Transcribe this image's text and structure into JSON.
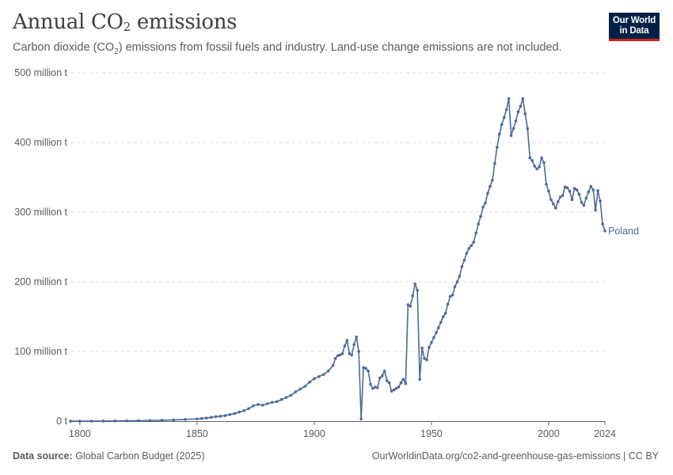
{
  "header": {
    "title_main": "Annual CO",
    "title_sub": "2",
    "title_rest": " emissions",
    "subtitle_a": "Carbon dioxide (CO",
    "subtitle_sub": "2",
    "subtitle_b": ") emissions from fossil fuels and industry. Land-use change emissions are not included.",
    "logo_line1": "Our World",
    "logo_line2": "in Data"
  },
  "footer": {
    "source_label": "Data source:",
    "source_value": " Global Carbon Budget (2025)",
    "link": "OurWorldinData.org/co2-and-greenhouse-gas-emissions | CC BY"
  },
  "colors": {
    "series": "#4c6a9c",
    "grid": "#dddddd",
    "axis": "#666666",
    "text": "#5b5b5b"
  },
  "chart_data": {
    "type": "line",
    "title": "Annual CO₂ emissions",
    "ylim": [
      0,
      500
    ],
    "xlim": [
      1796,
      2024
    ],
    "grid": true,
    "y_ticks": [
      {
        "value": 0,
        "label": "0 t"
      },
      {
        "value": 100,
        "label": "100 million t"
      },
      {
        "value": 200,
        "label": "200 million t"
      },
      {
        "value": 300,
        "label": "300 million t"
      },
      {
        "value": 400,
        "label": "400 million t"
      },
      {
        "value": 500,
        "label": "500 million t"
      }
    ],
    "x_ticks": [
      {
        "value": 1800,
        "label": "1800"
      },
      {
        "value": 1850,
        "label": "1850"
      },
      {
        "value": 1900,
        "label": "1900"
      },
      {
        "value": 1950,
        "label": "1950"
      },
      {
        "value": 2000,
        "label": "2000"
      },
      {
        "value": 2024,
        "label": "2024"
      }
    ],
    "series": [
      {
        "name": "Poland",
        "unit": "million t",
        "points": [
          [
            1796,
            0.05
          ],
          [
            1800,
            0.1
          ],
          [
            1805,
            0.15
          ],
          [
            1810,
            0.2
          ],
          [
            1815,
            0.35
          ],
          [
            1820,
            0.5
          ],
          [
            1825,
            0.7
          ],
          [
            1830,
            1.0
          ],
          [
            1835,
            1.3
          ],
          [
            1840,
            1.8
          ],
          [
            1845,
            2.5
          ],
          [
            1850,
            3.2
          ],
          [
            1852,
            3.8
          ],
          [
            1854,
            4.5
          ],
          [
            1856,
            5.5
          ],
          [
            1858,
            6.5
          ],
          [
            1860,
            7.0
          ],
          [
            1862,
            8.0
          ],
          [
            1864,
            9.5
          ],
          [
            1866,
            11.0
          ],
          [
            1868,
            13.0
          ],
          [
            1870,
            15.0
          ],
          [
            1872,
            18.0
          ],
          [
            1874,
            22.0
          ],
          [
            1876,
            24.0
          ],
          [
            1878,
            23.0
          ],
          [
            1880,
            25.0
          ],
          [
            1882,
            27.0
          ],
          [
            1884,
            28.0
          ],
          [
            1886,
            31.0
          ],
          [
            1888,
            34.0
          ],
          [
            1890,
            37.0
          ],
          [
            1892,
            42.0
          ],
          [
            1894,
            46.0
          ],
          [
            1896,
            50.0
          ],
          [
            1898,
            56.0
          ],
          [
            1900,
            61.0
          ],
          [
            1902,
            64.0
          ],
          [
            1904,
            67.0
          ],
          [
            1906,
            72.0
          ],
          [
            1908,
            80.0
          ],
          [
            1909,
            90.0
          ],
          [
            1910,
            94.0
          ],
          [
            1911,
            95.0
          ],
          [
            1912,
            97.0
          ],
          [
            1913,
            108.0
          ],
          [
            1914,
            116.0
          ],
          [
            1915,
            97.0
          ],
          [
            1916,
            95.0
          ],
          [
            1917,
            110.0
          ],
          [
            1918,
            121.0
          ],
          [
            1919,
            100.0
          ],
          [
            1920,
            3.0
          ],
          [
            1921,
            77.0
          ],
          [
            1922,
            76.0
          ],
          [
            1923,
            72.0
          ],
          [
            1924,
            53.0
          ],
          [
            1925,
            47.0
          ],
          [
            1926,
            49.0
          ],
          [
            1927,
            48.0
          ],
          [
            1928,
            62.0
          ],
          [
            1929,
            65.0
          ],
          [
            1930,
            72.0
          ],
          [
            1931,
            58.0
          ],
          [
            1932,
            55.0
          ],
          [
            1933,
            43.0
          ],
          [
            1934,
            45.0
          ],
          [
            1935,
            47.0
          ],
          [
            1936,
            49.0
          ],
          [
            1937,
            55.0
          ],
          [
            1938,
            60.0
          ],
          [
            1939,
            54.0
          ],
          [
            1940,
            167.0
          ],
          [
            1941,
            165.0
          ],
          [
            1942,
            180.0
          ],
          [
            1943,
            197.0
          ],
          [
            1944,
            188.0
          ],
          [
            1945,
            60.0
          ],
          [
            1946,
            105.0
          ],
          [
            1947,
            90.0
          ],
          [
            1948,
            88.0
          ],
          [
            1949,
            106.0
          ],
          [
            1950,
            113.0
          ],
          [
            1951,
            120.0
          ],
          [
            1952,
            127.0
          ],
          [
            1953,
            134.0
          ],
          [
            1954,
            142.0
          ],
          [
            1955,
            150.0
          ],
          [
            1956,
            155.0
          ],
          [
            1957,
            168.0
          ],
          [
            1958,
            179.0
          ],
          [
            1959,
            181.0
          ],
          [
            1960,
            193.0
          ],
          [
            1961,
            200.0
          ],
          [
            1962,
            208.0
          ],
          [
            1963,
            222.0
          ],
          [
            1964,
            231.0
          ],
          [
            1965,
            241.0
          ],
          [
            1966,
            248.0
          ],
          [
            1967,
            252.0
          ],
          [
            1968,
            257.0
          ],
          [
            1969,
            270.0
          ],
          [
            1970,
            283.0
          ],
          [
            1971,
            294.0
          ],
          [
            1972,
            307.0
          ],
          [
            1973,
            313.0
          ],
          [
            1974,
            327.0
          ],
          [
            1975,
            337.0
          ],
          [
            1976,
            346.0
          ],
          [
            1977,
            370.0
          ],
          [
            1978,
            393.0
          ],
          [
            1979,
            412.0
          ],
          [
            1980,
            426.0
          ],
          [
            1981,
            436.0
          ],
          [
            1982,
            447.0
          ],
          [
            1983,
            463.0
          ],
          [
            1984,
            410.0
          ],
          [
            1985,
            420.0
          ],
          [
            1986,
            431.0
          ],
          [
            1987,
            444.0
          ],
          [
            1988,
            452.0
          ],
          [
            1989,
            463.0
          ],
          [
            1990,
            441.0
          ],
          [
            1991,
            420.0
          ],
          [
            1992,
            378.0
          ],
          [
            1993,
            374.0
          ],
          [
            1994,
            366.0
          ],
          [
            1995,
            362.0
          ],
          [
            1996,
            365.0
          ],
          [
            1997,
            378.0
          ],
          [
            1998,
            371.0
          ],
          [
            1999,
            340.0
          ],
          [
            2000,
            330.0
          ],
          [
            2001,
            318.0
          ],
          [
            2002,
            312.0
          ],
          [
            2003,
            306.0
          ],
          [
            2004,
            315.0
          ],
          [
            2005,
            322.0
          ],
          [
            2006,
            324.0
          ],
          [
            2007,
            336.0
          ],
          [
            2008,
            335.0
          ],
          [
            2009,
            330.0
          ],
          [
            2010,
            318.0
          ],
          [
            2011,
            334.0
          ],
          [
            2012,
            332.0
          ],
          [
            2013,
            326.0
          ],
          [
            2014,
            314.0
          ],
          [
            2015,
            310.0
          ],
          [
            2016,
            320.0
          ],
          [
            2017,
            329.0
          ],
          [
            2018,
            337.0
          ],
          [
            2019,
            332.0
          ],
          [
            2020,
            303.0
          ],
          [
            2021,
            331.0
          ],
          [
            2022,
            316.0
          ],
          [
            2023,
            283.0
          ],
          [
            2024,
            273.0
          ]
        ]
      }
    ]
  }
}
